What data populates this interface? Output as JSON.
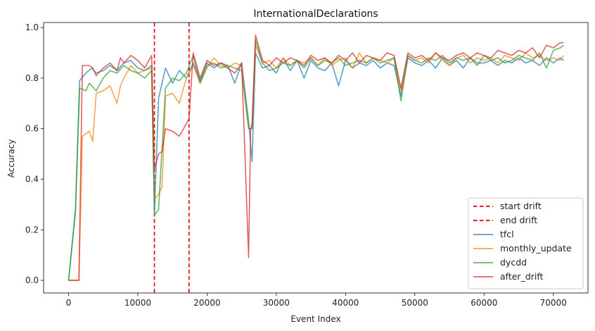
{
  "chart_data": {
    "type": "line",
    "title": "InternationalDeclarations",
    "xlabel": "Event Index",
    "ylabel": "Accuracy",
    "xlim": [
      -3600,
      75000
    ],
    "ylim": [
      -0.05,
      1.02
    ],
    "xticks": [
      0,
      10000,
      20000,
      30000,
      40000,
      50000,
      60000,
      70000
    ],
    "yticks": [
      0.0,
      0.2,
      0.4,
      0.6,
      0.8,
      1.0
    ],
    "grid": false,
    "legend_position": "lower right",
    "vlines": [
      {
        "name": "start drift",
        "x": 12400,
        "color": "#e00000",
        "style": "dashed"
      },
      {
        "name": "end drift",
        "x": 17400,
        "color": "#e00000",
        "style": "dashed"
      }
    ],
    "series": [
      {
        "name": "tfcl",
        "color": "#1f77b4",
        "x": [
          0,
          1000,
          1600,
          2500,
          3400,
          4000,
          5000,
          6000,
          7000,
          8000,
          9000,
          10000,
          11000,
          12000,
          12400,
          13000,
          14000,
          15000,
          16000,
          17000,
          18000,
          19000,
          20000,
          21000,
          22000,
          23000,
          24000,
          25000,
          26000,
          26500,
          27000,
          28000,
          29000,
          30000,
          31000,
          32000,
          33000,
          34000,
          35000,
          36000,
          37000,
          38000,
          39000,
          40000,
          41000,
          42000,
          43000,
          44000,
          45000,
          46000,
          47000,
          48000,
          49000,
          50000,
          51000,
          52000,
          53000,
          54000,
          55000,
          56000,
          57000,
          58000,
          59000,
          60000,
          61000,
          62000,
          63000,
          64000,
          65000,
          66000,
          67000,
          68000,
          69000,
          70000,
          71000,
          71500
        ],
        "values": [
          0.0,
          0.28,
          0.79,
          0.82,
          0.84,
          0.82,
          0.83,
          0.85,
          0.83,
          0.86,
          0.87,
          0.84,
          0.83,
          0.85,
          0.27,
          0.72,
          0.84,
          0.78,
          0.83,
          0.8,
          0.86,
          0.79,
          0.86,
          0.84,
          0.86,
          0.85,
          0.78,
          0.86,
          0.63,
          0.47,
          0.9,
          0.84,
          0.85,
          0.82,
          0.88,
          0.83,
          0.87,
          0.8,
          0.87,
          0.84,
          0.83,
          0.86,
          0.77,
          0.87,
          0.84,
          0.86,
          0.85,
          0.87,
          0.84,
          0.86,
          0.85,
          0.73,
          0.88,
          0.86,
          0.85,
          0.87,
          0.84,
          0.88,
          0.85,
          0.87,
          0.84,
          0.88,
          0.86,
          0.86,
          0.87,
          0.85,
          0.87,
          0.86,
          0.88,
          0.86,
          0.87,
          0.85,
          0.88,
          0.86,
          0.88,
          0.87
        ]
      },
      {
        "name": "monthly_update",
        "color": "#ff7f0e",
        "x": [
          0,
          1500,
          2000,
          3000,
          3500,
          4000,
          5000,
          6000,
          7000,
          7500,
          8000,
          9000,
          10000,
          11000,
          12000,
          12400,
          13000,
          13500,
          14000,
          15000,
          16000,
          17000,
          18000,
          19000,
          20000,
          21000,
          22000,
          23000,
          24000,
          25000,
          26000,
          26500,
          27000,
          28000,
          29000,
          30000,
          31000,
          32000,
          33000,
          34000,
          35000,
          36000,
          37000,
          38000,
          39000,
          40000,
          41000,
          42000,
          43000,
          44000,
          45000,
          46000,
          47000,
          48000,
          49000,
          50000,
          51000,
          52000,
          53000,
          54000,
          55000,
          56000,
          57000,
          58000,
          59000,
          60000,
          61000,
          62000,
          63000,
          64000,
          65000,
          66000,
          67000,
          68000,
          69000,
          70000,
          71000,
          71500
        ],
        "values": [
          0.0,
          0.0,
          0.57,
          0.59,
          0.55,
          0.74,
          0.75,
          0.77,
          0.7,
          0.77,
          0.8,
          0.85,
          0.82,
          0.83,
          0.84,
          0.32,
          0.34,
          0.37,
          0.73,
          0.74,
          0.7,
          0.8,
          0.85,
          0.78,
          0.84,
          0.88,
          0.85,
          0.84,
          0.86,
          0.85,
          0.6,
          0.6,
          0.93,
          0.86,
          0.87,
          0.84,
          0.88,
          0.85,
          0.87,
          0.86,
          0.88,
          0.85,
          0.88,
          0.85,
          0.87,
          0.88,
          0.84,
          0.9,
          0.86,
          0.88,
          0.87,
          0.86,
          0.88,
          0.75,
          0.89,
          0.87,
          0.88,
          0.86,
          0.9,
          0.87,
          0.85,
          0.88,
          0.89,
          0.86,
          0.88,
          0.87,
          0.88,
          0.86,
          0.89,
          0.88,
          0.87,
          0.9,
          0.88,
          0.89,
          0.87,
          0.88,
          0.87,
          0.89
        ]
      },
      {
        "name": "dycdd",
        "color": "#2ca02c",
        "x": [
          0,
          1000,
          1600,
          2500,
          3000,
          4000,
          5000,
          6000,
          7000,
          8000,
          9000,
          10000,
          11000,
          12000,
          12400,
          13000,
          14000,
          15000,
          16000,
          17000,
          18000,
          19000,
          20000,
          21000,
          22000,
          23000,
          24000,
          25000,
          26000,
          26500,
          27000,
          28000,
          29000,
          30000,
          31000,
          32000,
          33000,
          34000,
          35000,
          36000,
          37000,
          38000,
          39000,
          40000,
          41000,
          42000,
          43000,
          44000,
          45000,
          46000,
          47000,
          48000,
          49000,
          50000,
          51000,
          52000,
          53000,
          54000,
          55000,
          56000,
          57000,
          58000,
          59000,
          60000,
          61000,
          62000,
          63000,
          64000,
          65000,
          66000,
          67000,
          68000,
          69000,
          70000,
          71000,
          71500
        ],
        "values": [
          0.0,
          0.27,
          0.76,
          0.75,
          0.78,
          0.75,
          0.8,
          0.83,
          0.82,
          0.85,
          0.83,
          0.82,
          0.8,
          0.83,
          0.26,
          0.28,
          0.76,
          0.8,
          0.79,
          0.82,
          0.89,
          0.78,
          0.85,
          0.86,
          0.84,
          0.85,
          0.84,
          0.83,
          0.6,
          0.6,
          0.95,
          0.86,
          0.83,
          0.84,
          0.86,
          0.85,
          0.87,
          0.84,
          0.88,
          0.85,
          0.87,
          0.86,
          0.88,
          0.85,
          0.86,
          0.87,
          0.86,
          0.88,
          0.86,
          0.87,
          0.88,
          0.71,
          0.89,
          0.87,
          0.86,
          0.88,
          0.87,
          0.89,
          0.86,
          0.88,
          0.87,
          0.88,
          0.85,
          0.89,
          0.87,
          0.88,
          0.86,
          0.87,
          0.89,
          0.88,
          0.87,
          0.9,
          0.84,
          0.91,
          0.92,
          0.93
        ]
      },
      {
        "name": "after_drift",
        "color": "#d62728",
        "x": [
          0,
          1500,
          2000,
          3000,
          3500,
          4000,
          5000,
          6000,
          7000,
          7500,
          8000,
          9000,
          10000,
          11000,
          12000,
          12400,
          13000,
          13500,
          14000,
          15000,
          16000,
          17000,
          17400,
          18000,
          19000,
          20000,
          21000,
          22000,
          23000,
          24000,
          25000,
          26000,
          26300,
          26500,
          27000,
          28000,
          29000,
          30000,
          31000,
          32000,
          33000,
          34000,
          35000,
          36000,
          37000,
          38000,
          39000,
          40000,
          41000,
          42000,
          43000,
          44000,
          45000,
          46000,
          47000,
          48000,
          49000,
          50000,
          51000,
          52000,
          53000,
          54000,
          55000,
          56000,
          57000,
          58000,
          59000,
          60000,
          61000,
          62000,
          63000,
          64000,
          65000,
          66000,
          67000,
          68000,
          69000,
          70000,
          71000,
          71500
        ],
        "values": [
          0.0,
          0.0,
          0.85,
          0.85,
          0.84,
          0.81,
          0.84,
          0.86,
          0.83,
          0.88,
          0.86,
          0.89,
          0.87,
          0.84,
          0.89,
          0.44,
          0.5,
          0.51,
          0.6,
          0.59,
          0.57,
          0.62,
          0.64,
          0.9,
          0.8,
          0.87,
          0.85,
          0.86,
          0.84,
          0.82,
          0.86,
          0.09,
          0.6,
          0.62,
          0.97,
          0.87,
          0.85,
          0.88,
          0.86,
          0.88,
          0.87,
          0.85,
          0.89,
          0.87,
          0.88,
          0.86,
          0.89,
          0.87,
          0.9,
          0.86,
          0.89,
          0.88,
          0.87,
          0.9,
          0.89,
          0.76,
          0.9,
          0.88,
          0.89,
          0.87,
          0.9,
          0.88,
          0.87,
          0.89,
          0.9,
          0.88,
          0.9,
          0.89,
          0.88,
          0.91,
          0.9,
          0.89,
          0.91,
          0.9,
          0.92,
          0.88,
          0.93,
          0.92,
          0.94,
          0.94
        ]
      }
    ]
  }
}
